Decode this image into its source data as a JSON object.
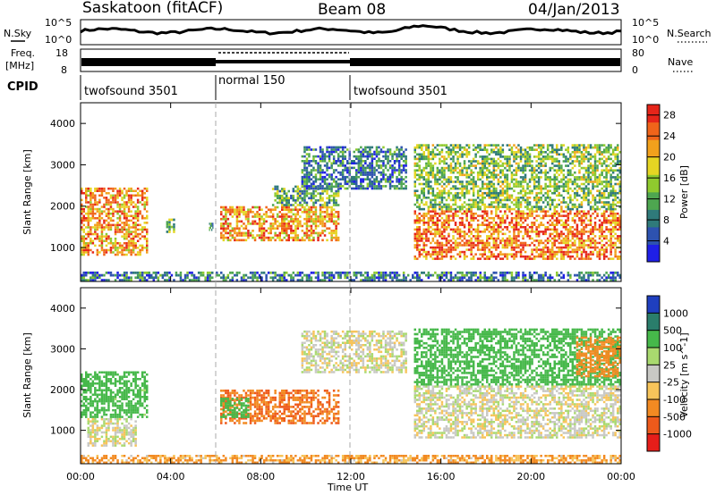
{
  "header": {
    "title": "Saskatoon (fitACF)",
    "beam": "Beam 08",
    "date": "04/Jan/2013"
  },
  "sky_panel": {
    "left_label": "N.Sky",
    "right_label": "N.Search",
    "tick_top": "10^5",
    "tick_bottom": "10^0"
  },
  "freq_panel": {
    "left_label_1": "Freq.",
    "left_label_2": "[MHz]",
    "right_label": "Nave",
    "left_ticks": [
      "18",
      "8"
    ],
    "right_ticks": [
      "80",
      "0"
    ]
  },
  "cpid": {
    "label": "CPID",
    "segments": [
      {
        "name": "twofsound 3501",
        "start_h": 0,
        "end_h": 6
      },
      {
        "name": "normal 150",
        "start_h": 6,
        "end_h": 12
      },
      {
        "name": "twofsound 3501",
        "start_h": 12,
        "end_h": 24
      }
    ]
  },
  "chart_data": [
    {
      "type": "heatmap",
      "title": "Power",
      "xlabel": "",
      "ylabel": "Slant Range [km]",
      "xlim_hours": [
        0,
        24
      ],
      "ylim_km": [
        180,
        4500
      ],
      "y_ticks": [
        "1000",
        "2000",
        "3000",
        "4000"
      ],
      "colorbar": {
        "label": "Power [dB]",
        "ticks": [
          "4",
          "8",
          "12",
          "16",
          "20",
          "24",
          "28"
        ],
        "range": [
          0,
          30
        ],
        "colors": [
          "#1f1fe6",
          "#2d52b0",
          "#2f7a7a",
          "#4ea650",
          "#8fca2e",
          "#e5d523",
          "#f2a11c",
          "#f0641a",
          "#e6251a"
        ]
      },
      "echo_regions": [
        {
          "t0": 0.0,
          "t1": 3.0,
          "r0": 800,
          "r1": 2450,
          "level": 22
        },
        {
          "t0": 3.8,
          "t1": 4.2,
          "r0": 1350,
          "r1": 1700,
          "level": 12
        },
        {
          "t0": 5.7,
          "t1": 5.9,
          "r0": 1400,
          "r1": 1600,
          "level": 10
        },
        {
          "t0": 6.2,
          "t1": 11.5,
          "r0": 1150,
          "r1": 2000,
          "level": 22
        },
        {
          "t0": 8.5,
          "t1": 11.5,
          "r0": 2000,
          "r1": 2500,
          "level": 12
        },
        {
          "t0": 9.8,
          "t1": 14.5,
          "r0": 2400,
          "r1": 3450,
          "level": 8
        },
        {
          "t0": 14.8,
          "t1": 24.0,
          "r0": 700,
          "r1": 1900,
          "level": 24
        },
        {
          "t0": 14.8,
          "t1": 24.0,
          "r0": 1900,
          "r1": 3500,
          "level": 14
        },
        {
          "t0": 0.0,
          "t1": 24.0,
          "r0": 180,
          "r1": 420,
          "level": 8
        }
      ]
    },
    {
      "type": "heatmap",
      "title": "Velocity",
      "xlabel": "Time UT",
      "ylabel": "Slant Range [km]",
      "xlim_hours": [
        0,
        24
      ],
      "ylim_km": [
        180,
        4500
      ],
      "x_ticks": [
        "00:00",
        "04:00",
        "08:00",
        "12:00",
        "16:00",
        "20:00",
        "00:00"
      ],
      "y_ticks": [
        "1000",
        "2000",
        "3000",
        "4000"
      ],
      "colorbar": {
        "label": "Velocity [m s^-1]",
        "ticks": [
          "1000",
          "500",
          "100",
          "25",
          "-25",
          "-100",
          "-500",
          "-1000"
        ],
        "colors": [
          "#1f3fbf",
          "#2a7d6b",
          "#46b84a",
          "#a9d96f",
          "#c8c8c4",
          "#f7c45a",
          "#f28a22",
          "#ee5a1b",
          "#e61e1a"
        ]
      },
      "echo_regions": [
        {
          "t0": 0.0,
          "t1": 3.0,
          "r0": 1300,
          "r1": 2450,
          "vel": 120
        },
        {
          "t0": 0.3,
          "t1": 2.5,
          "r0": 600,
          "r1": 1300,
          "vel": 0
        },
        {
          "t0": 6.2,
          "t1": 11.5,
          "r0": 1150,
          "r1": 2000,
          "vel": -300
        },
        {
          "t0": 6.2,
          "t1": 7.5,
          "r0": 1300,
          "r1": 1800,
          "vel": 200
        },
        {
          "t0": 9.8,
          "t1": 14.5,
          "r0": 2400,
          "r1": 3450,
          "vel": 0
        },
        {
          "t0": 14.8,
          "t1": 24.0,
          "r0": 800,
          "r1": 2100,
          "vel": 0
        },
        {
          "t0": 14.8,
          "t1": 24.0,
          "r0": 2100,
          "r1": 3500,
          "vel": 150
        },
        {
          "t0": 22.0,
          "t1": 24.0,
          "r0": 2300,
          "r1": 3300,
          "vel": -200
        },
        {
          "t0": 0.0,
          "t1": 24.0,
          "r0": 180,
          "r1": 400,
          "vel": -80
        }
      ]
    }
  ]
}
